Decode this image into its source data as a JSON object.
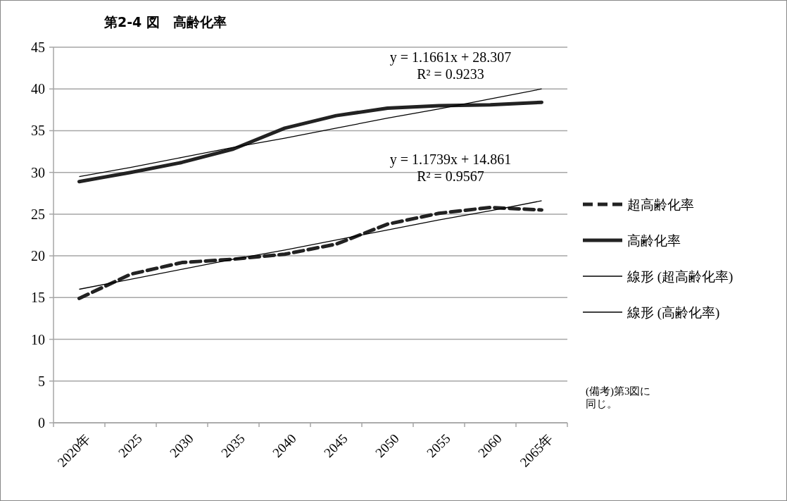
{
  "chart_data": {
    "type": "line",
    "title": "第2-4 図　高齢化率",
    "categories": [
      "2020年",
      "2025",
      "2030",
      "2035",
      "2040",
      "2045",
      "2050",
      "2055",
      "2060",
      "2065年"
    ],
    "series": [
      {
        "name": "超高齢化率",
        "color": "#222222",
        "line_style": "dashed",
        "values": [
          14.9,
          17.8,
          19.2,
          19.6,
          20.2,
          21.4,
          23.8,
          25.1,
          25.8,
          25.5
        ]
      },
      {
        "name": "高齢化率",
        "color": "#222222",
        "line_style": "solid",
        "values": [
          28.9,
          30.0,
          31.2,
          32.8,
          35.3,
          36.8,
          37.7,
          38.0,
          38.1,
          38.4
        ]
      },
      {
        "name": "線形 (超高齢化率)",
        "type": "line",
        "color": "#000000",
        "line_style": "solid",
        "values": [
          16.0,
          17.2,
          18.4,
          19.6,
          20.7,
          21.9,
          23.1,
          24.3,
          25.4,
          26.6
        ]
      },
      {
        "name": "線形 (高齢化率)",
        "type": "line",
        "color": "#000000",
        "line_style": "solid",
        "values": [
          29.5,
          30.6,
          31.8,
          33.0,
          34.1,
          35.3,
          36.5,
          37.6,
          38.8,
          40.0
        ]
      }
    ],
    "ylim": [
      0,
      45
    ],
    "yticks": [
      0,
      5,
      10,
      15,
      20,
      25,
      30,
      35,
      40,
      45
    ],
    "grid": "y",
    "legend": "right",
    "marker": "none",
    "annotations": [
      "y = 1.1661x + 28.307\nR² = 0.9233",
      "y = 1.1739x + 14.861\nR² = 0.9567",
      "(備考)第3図に同じ。"
    ]
  }
}
